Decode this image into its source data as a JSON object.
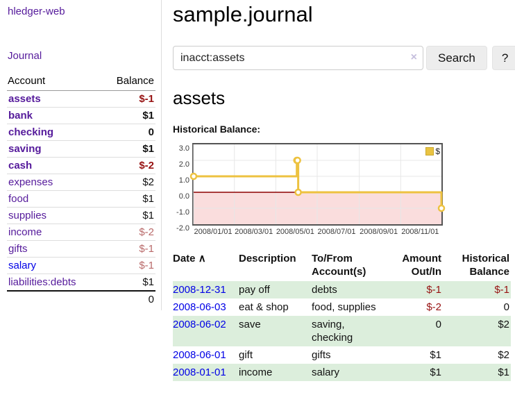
{
  "sidebar": {
    "brand": "hledger-web",
    "nav_journal": "Journal",
    "accounts": {
      "header_account": "Account",
      "header_balance": "Balance",
      "rows": [
        {
          "name": "assets",
          "balance": "$-1",
          "depth": 1,
          "bold": true,
          "negative": true,
          "blue": false
        },
        {
          "name": "bank",
          "balance": "$1",
          "depth": 2,
          "bold": true,
          "negative": false,
          "blue": false
        },
        {
          "name": "checking",
          "balance": "0",
          "depth": 3,
          "bold": true,
          "negative": false,
          "blue": false
        },
        {
          "name": "saving",
          "balance": "$1",
          "depth": 3,
          "bold": true,
          "negative": false,
          "blue": false
        },
        {
          "name": "cash",
          "balance": "$-2",
          "depth": 2,
          "bold": true,
          "negative": true,
          "blue": false
        },
        {
          "name": "expenses",
          "balance": "$2",
          "depth": 1,
          "bold": false,
          "negative": false,
          "blue": false
        },
        {
          "name": "food",
          "balance": "$1",
          "depth": 2,
          "bold": false,
          "negative": false,
          "blue": false
        },
        {
          "name": "supplies",
          "balance": "$1",
          "depth": 2,
          "bold": false,
          "negative": false,
          "blue": false
        },
        {
          "name": "income",
          "balance": "$-2",
          "depth": 1,
          "bold": false,
          "negative": true,
          "blue": false
        },
        {
          "name": "gifts",
          "balance": "$-1",
          "depth": 2,
          "bold": false,
          "negative": true,
          "blue": false
        },
        {
          "name": "salary",
          "balance": "$-1",
          "depth": 2,
          "bold": false,
          "negative": true,
          "blue": true
        },
        {
          "name": "liabilities:debts",
          "balance": "$1",
          "depth": 1,
          "bold": false,
          "negative": false,
          "blue": false
        }
      ],
      "total": "0"
    }
  },
  "main": {
    "title": "sample.journal",
    "search": {
      "value": "inacct:assets",
      "clear_icon": "×",
      "button_label": "Search",
      "help_label": "?"
    },
    "account_heading": "assets",
    "chart_label": "Historical Balance:",
    "register": {
      "headers": {
        "date": "Date",
        "sort_indicator": "∧",
        "description": "Description",
        "accounts": "To/From Account(s)",
        "amount": "Amount Out/In",
        "balance": "Historical Balance"
      },
      "rows": [
        {
          "date": "2008-12-31",
          "description": "pay off",
          "accounts": "debts",
          "amount": "$-1",
          "amount_negative": true,
          "balance": "$-1",
          "balance_negative": true
        },
        {
          "date": "2008-06-03",
          "description": "eat & shop",
          "accounts": "food, supplies",
          "amount": "$-2",
          "amount_negative": true,
          "balance": "0",
          "balance_negative": false
        },
        {
          "date": "2008-06-02",
          "description": "save",
          "accounts": "saving, checking",
          "amount": "0",
          "amount_negative": false,
          "balance": "$2",
          "balance_negative": false
        },
        {
          "date": "2008-06-01",
          "description": "gift",
          "accounts": "gifts",
          "amount": "$1",
          "amount_negative": false,
          "balance": "$2",
          "balance_negative": false
        },
        {
          "date": "2008-01-01",
          "description": "income",
          "accounts": "salary",
          "amount": "$1",
          "amount_negative": false,
          "balance": "$1",
          "balance_negative": false
        }
      ]
    }
  },
  "chart_data": {
    "type": "line",
    "title": "Historical Balance:",
    "step": true,
    "series": [
      {
        "name": "$",
        "color": "#edc240",
        "points": [
          [
            "2008-01-01",
            1
          ],
          [
            "2008-06-01",
            2
          ],
          [
            "2008-06-02",
            2
          ],
          [
            "2008-06-03",
            0
          ],
          [
            "2008-12-31",
            -1
          ]
        ]
      }
    ],
    "x_range": [
      "2008-01-01",
      "2008-12-31"
    ],
    "ylim": [
      -2,
      3
    ],
    "y_ticks": [
      "3.0",
      "2.0",
      "1.0",
      "0.0",
      "-1.0",
      "-2.0"
    ],
    "x_ticks": [
      "2008/01/01",
      "2008/03/01",
      "2008/05/01",
      "2008/07/01",
      "2008/09/01",
      "2008/11/01"
    ],
    "legend_position": "top-right",
    "legend_label": "$",
    "grid": true,
    "grid_color": "#e7e7e7",
    "zero_line_color": "#8b0000",
    "negative_region_color": "#fadddd",
    "border_color": "#545454"
  }
}
